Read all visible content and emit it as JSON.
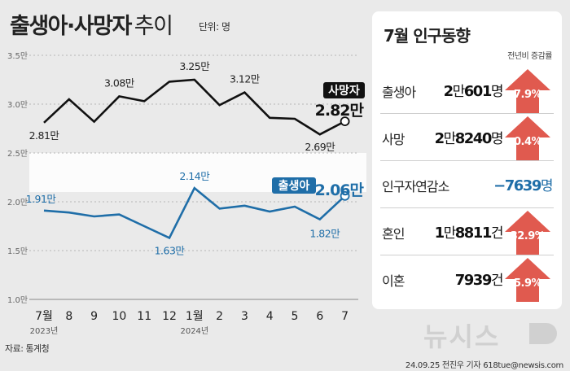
{
  "header": {
    "title": "출생아·사망자",
    "title_suffix": "추이",
    "unit": "단위: 명"
  },
  "chart_data": {
    "type": "line",
    "categories": [
      "7월",
      "8",
      "9",
      "10",
      "11",
      "12",
      "1월",
      "2",
      "3",
      "4",
      "5",
      "6",
      "7"
    ],
    "year_labels": [
      {
        "label": "2023년",
        "category_index": 0
      },
      {
        "label": "2024년",
        "category_index": 6
      }
    ],
    "y_ticks": [
      "3.5만",
      "3.0만",
      "2.5만",
      "2.0만",
      "1.5만",
      "1.0만"
    ],
    "ylim": [
      10000,
      35000
    ],
    "grid": true,
    "series": [
      {
        "name": "사망자",
        "color": "#111111",
        "values": [
          28100,
          30500,
          28200,
          30800,
          30300,
          32300,
          32500,
          29900,
          31200,
          28600,
          28500,
          26900,
          28240
        ],
        "point_labels": [
          {
            "index": 0,
            "text": "2.81만"
          },
          {
            "index": 3,
            "text": "3.08만"
          },
          {
            "index": 6,
            "text": "3.25만"
          },
          {
            "index": 8,
            "text": "3.12만"
          },
          {
            "index": 11,
            "text": "2.69만"
          }
        ],
        "end_label": "2.82만"
      },
      {
        "name": "출생아",
        "color": "#1f6ea8",
        "values": [
          19100,
          18900,
          18500,
          18700,
          17500,
          16300,
          21400,
          19300,
          19600,
          19000,
          19500,
          18200,
          20601
        ],
        "point_labels": [
          {
            "index": 0,
            "text": "1.91만"
          },
          {
            "index": 5,
            "text": "1.63만"
          },
          {
            "index": 6,
            "text": "2.14만"
          },
          {
            "index": 11,
            "text": "1.82만"
          }
        ],
        "end_label": "2.06만"
      }
    ]
  },
  "panel": {
    "title": "7월 인구동향",
    "caption": "전년비 증감률",
    "rows": [
      {
        "label": "출생아",
        "value_a": "2",
        "unit_a": "만",
        "value_b": "601",
        "unit_b": "명",
        "change": "7.9%"
      },
      {
        "label": "사망",
        "value_a": "2",
        "unit_a": "만",
        "value_b": "8240",
        "unit_b": "명",
        "change": "0.4%"
      },
      {
        "label": "인구자연감소",
        "value_a": "",
        "unit_a": "",
        "value_b": "−7639",
        "unit_b": "명",
        "change": ""
      },
      {
        "label": "혼인",
        "value_a": "1",
        "unit_a": "만",
        "value_b": "8811",
        "unit_b": "건",
        "change": "32.9%"
      },
      {
        "label": "이혼",
        "value_a": "",
        "unit_a": "",
        "value_b": "7939",
        "unit_b": "건",
        "change": "5.9%"
      }
    ],
    "arrow_color": "#e05a4f"
  },
  "footer": {
    "source": "자료: 통계청",
    "credit": "24.09.25 전진우 기자 618tue@newsis.com",
    "logo": "뉴시스"
  }
}
